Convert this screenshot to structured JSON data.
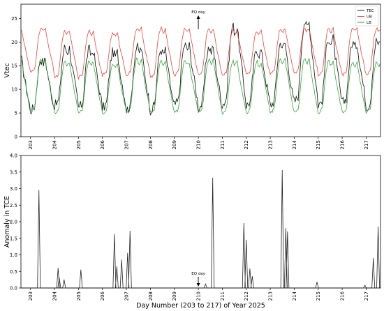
{
  "chart_data": [
    {
      "type": "line",
      "title": "",
      "xlabel": "",
      "ylabel": "Vtec",
      "xlim": [
        202.6,
        217.6
      ],
      "ylim": [
        0,
        28
      ],
      "yticks": [
        0,
        5,
        10,
        15,
        20,
        25
      ],
      "xticks": [
        "203",
        "204",
        "205",
        "206",
        "207",
        "208",
        "209",
        "210",
        "211",
        "212",
        "213",
        "214",
        "215",
        "216",
        "217"
      ],
      "legend": "top-right",
      "grid": false,
      "annotation": {
        "text": "EQ day",
        "x": 210.0,
        "direction": "up"
      },
      "series": [
        {
          "name": "TEC",
          "color": "#222222",
          "daily_max": [
            16.5,
            19,
            18.5,
            18,
            19,
            18.5,
            19.5,
            19,
            23.5,
            18.5,
            20,
            24.5,
            21,
            20,
            20.5
          ],
          "daily_min": [
            5,
            6,
            5.5,
            5.5,
            5,
            5,
            6,
            5.5,
            6,
            6,
            6,
            6.5,
            6,
            6.5,
            5.5
          ]
        },
        {
          "name": "UB",
          "color": "#e8483f",
          "daily_max": [
            23,
            22.5,
            22.5,
            22,
            23,
            23,
            23,
            23,
            22.5,
            22.5,
            23,
            23,
            23,
            23,
            23
          ],
          "daily_min": [
            13,
            12,
            12,
            12.5,
            12.5,
            12,
            12.5,
            12.5,
            12.5,
            12.5,
            13,
            13,
            12.5,
            12.5,
            12.5
          ]
        },
        {
          "name": "LB",
          "color": "#3aa53a",
          "daily_max": [
            16.5,
            16,
            16,
            15.5,
            16.5,
            16,
            16,
            16.5,
            16,
            16,
            16.5,
            16.5,
            16,
            16,
            16
          ],
          "daily_min": [
            4.5,
            4.5,
            4.5,
            4.5,
            4.5,
            4.5,
            4.5,
            4.5,
            4.5,
            4.5,
            4.5,
            4.5,
            4.5,
            4.5,
            4.5
          ]
        }
      ]
    },
    {
      "type": "line",
      "title": "",
      "xlabel": "Day Number (203 to 217) of Year 2025",
      "ylabel": "Anomaly in TCE",
      "xlim": [
        202.6,
        217.6
      ],
      "ylim": [
        0,
        4.0
      ],
      "yticks": [
        "0.0",
        "0.5",
        "1.0",
        "1.5",
        "2.0",
        "2.5",
        "3.0",
        "3.5",
        "4.0"
      ],
      "xticks": [
        "203",
        "204",
        "205",
        "206",
        "207",
        "208",
        "209",
        "210",
        "211",
        "212",
        "213",
        "214",
        "215",
        "216",
        "217"
      ],
      "grid": false,
      "annotation": {
        "text": "EQ day",
        "x": 210.0,
        "direction": "down"
      },
      "series": [
        {
          "name": "Anomaly",
          "color": "#222222",
          "spikes": [
            [
              203.35,
              2.95
            ],
            [
              204.15,
              0.6
            ],
            [
              204.2,
              0.3
            ],
            [
              204.4,
              0.25
            ],
            [
              205.1,
              0.55
            ],
            [
              206.5,
              1.62
            ],
            [
              206.6,
              0.65
            ],
            [
              206.8,
              0.85
            ],
            [
              207.05,
              1.05
            ],
            [
              207.15,
              1.72
            ],
            [
              210.3,
              0.12
            ],
            [
              210.6,
              3.32
            ],
            [
              211.9,
              1.95
            ],
            [
              212.0,
              1.45
            ],
            [
              212.15,
              0.58
            ],
            [
              212.25,
              0.35
            ],
            [
              213.5,
              3.55
            ],
            [
              213.65,
              1.8
            ],
            [
              213.72,
              1.7
            ],
            [
              214.95,
              0.18
            ],
            [
              216.95,
              0.08
            ],
            [
              217.3,
              0.9
            ],
            [
              217.5,
              1.85
            ]
          ]
        }
      ]
    }
  ]
}
